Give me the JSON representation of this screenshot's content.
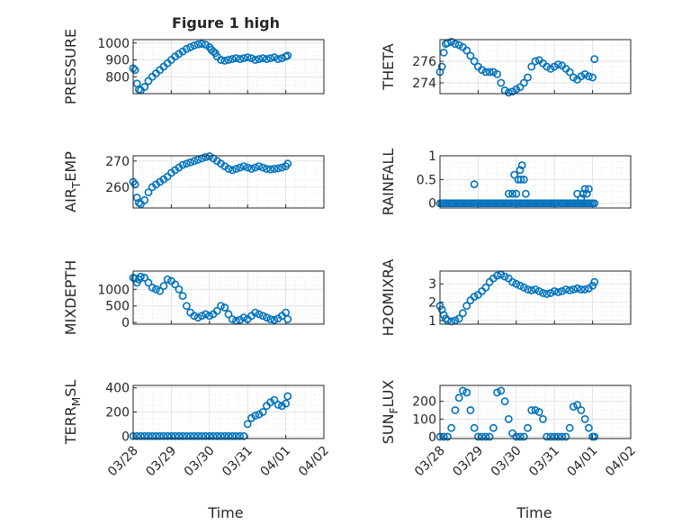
{
  "figure": {
    "title": "Figure 1 high",
    "xlabel": "Time",
    "xtick_labels": [
      "03/28",
      "03/29",
      "03/30",
      "03/31",
      "04/01",
      "04/02"
    ],
    "marker_color": "#0072BD"
  },
  "chart_data": [
    {
      "type": "scatter",
      "name": "pressure-chart",
      "ylabel": "PRESSURE",
      "ylabel_sub": "",
      "ylim": [
        700,
        1020
      ],
      "yticks": [
        800,
        900,
        1000
      ],
      "ytick_labels": [
        "800",
        "900",
        "1000"
      ],
      "xlim": [
        0,
        5
      ],
      "grid": true,
      "column": "left",
      "row": 0,
      "x": [
        0,
        0.05,
        0.1,
        0.15,
        0.2,
        0.3,
        0.4,
        0.5,
        0.6,
        0.7,
        0.8,
        0.9,
        1,
        1.1,
        1.2,
        1.3,
        1.4,
        1.5,
        1.6,
        1.7,
        1.8,
        1.9,
        2,
        2.05,
        2.1,
        2.15,
        2.2,
        2.3,
        2.4,
        2.5,
        2.6,
        2.7,
        2.8,
        2.9,
        3,
        3.1,
        3.2,
        3.3,
        3.4,
        3.5,
        3.6,
        3.7,
        3.8,
        3.9,
        4,
        4.05
      ],
      "y": [
        850,
        840,
        760,
        725,
        720,
        740,
        775,
        800,
        820,
        840,
        860,
        880,
        900,
        920,
        935,
        950,
        965,
        975,
        985,
        992,
        995,
        990,
        975,
        960,
        950,
        940,
        920,
        900,
        895,
        900,
        905,
        910,
        905,
        910,
        915,
        910,
        900,
        905,
        910,
        905,
        910,
        915,
        905,
        910,
        920,
        925
      ]
    },
    {
      "type": "scatter",
      "name": "theta-chart",
      "ylabel": "THETA",
      "ylabel_sub": "",
      "ylim": [
        273,
        278
      ],
      "yticks": [
        274,
        276
      ],
      "ytick_labels": [
        "274",
        "276"
      ],
      "xlim": [
        0,
        5
      ],
      "grid": true,
      "column": "right",
      "row": 0,
      "x": [
        0,
        0.05,
        0.1,
        0.15,
        0.2,
        0.3,
        0.4,
        0.5,
        0.6,
        0.7,
        0.8,
        0.9,
        1,
        1.1,
        1.2,
        1.3,
        1.4,
        1.5,
        1.6,
        1.7,
        1.8,
        1.9,
        2,
        2.1,
        2.2,
        2.3,
        2.4,
        2.5,
        2.6,
        2.7,
        2.8,
        2.9,
        3,
        3.1,
        3.2,
        3.3,
        3.4,
        3.5,
        3.6,
        3.7,
        3.8,
        3.9,
        4,
        4.05
      ],
      "y": [
        275,
        275.5,
        276.8,
        277.6,
        277.7,
        277.8,
        277.6,
        277.5,
        277.3,
        277,
        276.5,
        276,
        275.5,
        275.2,
        275,
        275,
        275,
        274.8,
        274,
        273.3,
        273.1,
        273.2,
        273.4,
        273.6,
        274,
        274.5,
        275.5,
        276,
        276.1,
        275.8,
        275.5,
        275.3,
        275.5,
        275.7,
        275.6,
        275.3,
        275,
        274.5,
        274.3,
        274.6,
        274.8,
        274.6,
        274.5,
        276.2
      ]
    },
    {
      "type": "scatter",
      "name": "air-temp-chart",
      "ylabel": "AIR",
      "ylabel_sub": "T",
      "ylabel_suffix": "EMP",
      "ylim": [
        252,
        272
      ],
      "yticks": [
        260,
        270
      ],
      "ytick_labels": [
        "260",
        "270"
      ],
      "xlim": [
        0,
        5
      ],
      "grid": true,
      "column": "left",
      "row": 1,
      "x": [
        0,
        0.05,
        0.1,
        0.15,
        0.2,
        0.3,
        0.4,
        0.5,
        0.6,
        0.7,
        0.8,
        0.9,
        1,
        1.1,
        1.2,
        1.3,
        1.4,
        1.5,
        1.6,
        1.7,
        1.8,
        1.9,
        2,
        2.1,
        2.2,
        2.3,
        2.4,
        2.5,
        2.6,
        2.7,
        2.8,
        2.9,
        3,
        3.1,
        3.2,
        3.3,
        3.4,
        3.5,
        3.6,
        3.7,
        3.8,
        3.9,
        4,
        4.05
      ],
      "y": [
        262,
        261,
        256,
        254,
        253.5,
        255,
        258,
        260,
        261,
        262,
        263,
        264,
        265.5,
        266.5,
        267.5,
        268.5,
        269,
        269.5,
        270,
        270.5,
        271,
        271.5,
        271.8,
        271,
        270,
        269,
        268,
        267,
        266.5,
        267,
        267.5,
        268,
        267.5,
        267,
        267.5,
        268,
        267.5,
        267,
        266.8,
        267,
        267.2,
        267.5,
        268,
        269
      ]
    },
    {
      "type": "scatter",
      "name": "rainfall-chart",
      "ylabel": "RAINFALL",
      "ylabel_sub": "",
      "ylim": [
        -0.1,
        1
      ],
      "yticks": [
        0,
        0.5,
        1
      ],
      "ytick_labels": [
        "0",
        "0.5",
        "1"
      ],
      "xlim": [
        0,
        5
      ],
      "grid": true,
      "column": "right",
      "row": 1,
      "x": [
        0,
        0.05,
        0.1,
        0.15,
        0.2,
        0.25,
        0.3,
        0.35,
        0.4,
        0.45,
        0.5,
        0.55,
        0.6,
        0.65,
        0.7,
        0.75,
        0.8,
        0.85,
        0.9,
        0.95,
        1,
        1.05,
        1.1,
        1.15,
        1.2,
        1.25,
        1.3,
        1.35,
        1.4,
        1.45,
        1.5,
        1.55,
        1.6,
        1.65,
        1.7,
        1.75,
        1.8,
        1.85,
        1.9,
        1.95,
        2,
        2.05,
        2.1,
        2.15,
        2.2,
        2.25,
        2.3,
        2.35,
        2.4,
        2.45,
        2.5,
        2.55,
        2.6,
        2.65,
        2.7,
        2.75,
        2.8,
        2.85,
        2.9,
        2.95,
        3,
        3.05,
        3.1,
        3.15,
        3.2,
        3.25,
        3.3,
        3.35,
        3.4,
        3.45,
        3.5,
        3.55,
        3.6,
        3.65,
        3.7,
        3.75,
        3.8,
        3.85,
        3.9,
        3.95,
        4,
        4.05,
        0.9,
        1.8,
        1.9,
        1.95,
        2.0,
        2.05,
        2.1,
        2.12,
        2.15,
        2.2,
        2.25,
        3.6,
        3.7,
        3.75,
        3.8,
        3.85,
        3.9
      ],
      "y": [
        0,
        0,
        0,
        0,
        0,
        0,
        0,
        0,
        0,
        0,
        0,
        0,
        0,
        0,
        0,
        0,
        0,
        0,
        0,
        0,
        0,
        0,
        0,
        0,
        0,
        0,
        0,
        0,
        0,
        0,
        0,
        0,
        0,
        0,
        0,
        0,
        0,
        0,
        0,
        0,
        0,
        0,
        0,
        0,
        0,
        0,
        0,
        0,
        0,
        0,
        0,
        0,
        0,
        0,
        0,
        0,
        0,
        0,
        0,
        0,
        0,
        0,
        0,
        0,
        0,
        0,
        0,
        0,
        0,
        0,
        0,
        0,
        0,
        0,
        0,
        0,
        0,
        0,
        0,
        0,
        0,
        0,
        0.4,
        0.2,
        0.2,
        0.6,
        0.2,
        0.5,
        0.7,
        0.5,
        0.8,
        0.5,
        0.2,
        0.2,
        0.1,
        0.2,
        0.3,
        0.2,
        0.3
      ]
    },
    {
      "type": "scatter",
      "name": "mixdepth-chart",
      "ylabel": "MIXDEPTH",
      "ylabel_sub": "",
      "ylim": [
        -50,
        1550
      ],
      "yticks": [
        0,
        500,
        1000
      ],
      "ytick_labels": [
        "0",
        "500",
        "1000"
      ],
      "xlim": [
        0,
        5
      ],
      "grid": true,
      "column": "left",
      "row": 2,
      "x": [
        0,
        0.05,
        0.1,
        0.15,
        0.2,
        0.3,
        0.4,
        0.5,
        0.6,
        0.7,
        0.8,
        0.9,
        1,
        1.1,
        1.2,
        1.3,
        1.4,
        1.5,
        1.6,
        1.7,
        1.8,
        1.9,
        2,
        2.1,
        2.2,
        2.3,
        2.4,
        2.5,
        2.6,
        2.7,
        2.8,
        2.9,
        3,
        3.1,
        3.2,
        3.3,
        3.4,
        3.5,
        3.6,
        3.7,
        3.8,
        3.9,
        4,
        4.05
      ],
      "y": [
        1350,
        1330,
        1200,
        1300,
        1380,
        1350,
        1200,
        1050,
        1000,
        950,
        1100,
        1300,
        1250,
        1150,
        1000,
        800,
        500,
        300,
        200,
        150,
        200,
        250,
        200,
        250,
        350,
        500,
        450,
        250,
        100,
        50,
        80,
        150,
        100,
        200,
        300,
        250,
        200,
        150,
        100,
        80,
        120,
        200,
        300,
        100
      ]
    },
    {
      "type": "scatter",
      "name": "h2omixra-chart",
      "ylabel": "H2OMIXRA",
      "ylabel_sub": "",
      "ylim": [
        0.8,
        3.7
      ],
      "yticks": [
        1,
        2,
        3
      ],
      "ytick_labels": [
        "1",
        "2",
        "3"
      ],
      "xlim": [
        0,
        5
      ],
      "grid": true,
      "column": "right",
      "row": 2,
      "x": [
        0,
        0.05,
        0.1,
        0.15,
        0.2,
        0.3,
        0.4,
        0.5,
        0.6,
        0.7,
        0.8,
        0.9,
        1,
        1.1,
        1.2,
        1.3,
        1.4,
        1.5,
        1.6,
        1.7,
        1.8,
        1.9,
        2,
        2.1,
        2.2,
        2.3,
        2.4,
        2.5,
        2.6,
        2.7,
        2.8,
        2.9,
        3,
        3.1,
        3.2,
        3.3,
        3.4,
        3.5,
        3.6,
        3.7,
        3.8,
        3.9,
        4,
        4.05
      ],
      "y": [
        1.8,
        1.6,
        1.3,
        1.1,
        1,
        0.95,
        1,
        1.1,
        1.4,
        1.8,
        2.1,
        2.3,
        2.4,
        2.6,
        2.8,
        3.1,
        3.3,
        3.45,
        3.5,
        3.4,
        3.3,
        3.1,
        3,
        2.9,
        2.8,
        2.7,
        2.65,
        2.7,
        2.6,
        2.5,
        2.45,
        2.5,
        2.6,
        2.55,
        2.6,
        2.7,
        2.65,
        2.7,
        2.75,
        2.7,
        2.7,
        2.75,
        2.9,
        3.1
      ]
    },
    {
      "type": "scatter",
      "name": "terr-msl-chart",
      "ylabel": "TERR",
      "ylabel_sub": "M",
      "ylabel_suffix": "SL",
      "ylim": [
        -20,
        420
      ],
      "yticks": [
        0,
        200,
        400
      ],
      "ytick_labels": [
        "0",
        "200",
        "400"
      ],
      "xlim": [
        0,
        5
      ],
      "grid": true,
      "column": "left",
      "row": 3,
      "x": [
        0,
        0.1,
        0.2,
        0.3,
        0.4,
        0.5,
        0.6,
        0.7,
        0.8,
        0.9,
        1,
        1.1,
        1.2,
        1.3,
        1.4,
        1.5,
        1.6,
        1.7,
        1.8,
        1.9,
        2,
        2.1,
        2.2,
        2.3,
        2.4,
        2.5,
        2.6,
        2.7,
        2.8,
        2.9,
        3,
        3.1,
        3.2,
        3.3,
        3.4,
        3.5,
        3.6,
        3.7,
        3.8,
        3.9,
        4,
        4.05
      ],
      "y": [
        0,
        0,
        0,
        0,
        0,
        0,
        0,
        0,
        0,
        0,
        0,
        0,
        0,
        0,
        0,
        0,
        0,
        0,
        0,
        0,
        0,
        0,
        0,
        0,
        0,
        0,
        0,
        0,
        0,
        0,
        100,
        150,
        170,
        180,
        200,
        250,
        280,
        300,
        260,
        250,
        270,
        330
      ]
    },
    {
      "type": "scatter",
      "name": "sun-flux-chart",
      "ylabel": "SUN",
      "ylabel_sub": "F",
      "ylabel_suffix": "LUX",
      "ylim": [
        -10,
        290
      ],
      "yticks": [
        0,
        100,
        200
      ],
      "ytick_labels": [
        "0",
        "100",
        "200"
      ],
      "xlim": [
        0,
        5
      ],
      "grid": true,
      "column": "right",
      "row": 3,
      "x": [
        0,
        0.1,
        0.2,
        0.3,
        0.4,
        0.5,
        0.6,
        0.7,
        0.8,
        0.9,
        1,
        1.1,
        1.2,
        1.3,
        1.4,
        1.5,
        1.6,
        1.7,
        1.8,
        1.9,
        2,
        2.1,
        2.2,
        2.3,
        2.4,
        2.5,
        2.6,
        2.7,
        2.8,
        2.9,
        3,
        3.1,
        3.2,
        3.3,
        3.4,
        3.5,
        3.6,
        3.7,
        3.8,
        3.9,
        4,
        4.05
      ],
      "y": [
        0,
        0,
        0,
        50,
        150,
        220,
        260,
        250,
        150,
        50,
        0,
        0,
        0,
        0,
        50,
        250,
        260,
        200,
        100,
        20,
        0,
        0,
        0,
        50,
        150,
        150,
        140,
        100,
        0,
        0,
        0,
        0,
        0,
        0,
        50,
        170,
        180,
        150,
        100,
        50,
        0,
        0
      ]
    }
  ]
}
